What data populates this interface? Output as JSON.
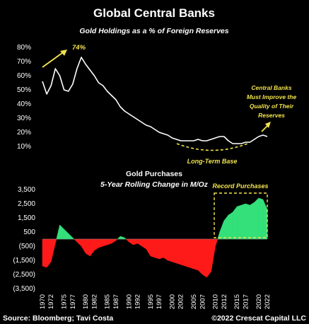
{
  "colors": {
    "background": "#000000",
    "line": "#ffffff",
    "annotation": "#f2e34c",
    "positive": "#33e07a",
    "negative": "#ff1a1a"
  },
  "footer": {
    "source": "Source: Bloomberg; Tavi Costa",
    "copyright": "©2022 Crescat Capital LLC"
  },
  "chart_data": [
    {
      "type": "line",
      "title": "Global Central Banks",
      "subtitle": "Gold Holdings as a % of Foreign Reserves",
      "ylim": [
        0.1,
        0.8
      ],
      "y_ticks": [
        "80%",
        "70%",
        "60%",
        "50%",
        "40%",
        "30%",
        "20%",
        "10%"
      ],
      "x": [
        1970,
        1971,
        1972,
        1973,
        1974,
        1975,
        1976,
        1977,
        1978,
        1979,
        1980,
        1981,
        1982,
        1983,
        1984,
        1985,
        1986,
        1987,
        1988,
        1989,
        1990,
        1991,
        1992,
        1993,
        1994,
        1995,
        1996,
        1997,
        1998,
        1999,
        2000,
        2001,
        2002,
        2003,
        2004,
        2005,
        2006,
        2007,
        2008,
        2009,
        2010,
        2011,
        2012,
        2013,
        2014,
        2015,
        2016,
        2017,
        2018,
        2019,
        2020,
        2021,
        2022
      ],
      "series": [
        {
          "values": [
            0.56,
            0.47,
            0.53,
            0.65,
            0.6,
            0.5,
            0.49,
            0.54,
            0.65,
            0.73,
            0.68,
            0.64,
            0.6,
            0.55,
            0.53,
            0.49,
            0.46,
            0.43,
            0.38,
            0.35,
            0.33,
            0.31,
            0.29,
            0.27,
            0.25,
            0.24,
            0.22,
            0.2,
            0.19,
            0.18,
            0.16,
            0.15,
            0.14,
            0.14,
            0.14,
            0.14,
            0.15,
            0.14,
            0.14,
            0.15,
            0.16,
            0.17,
            0.17,
            0.14,
            0.12,
            0.12,
            0.12,
            0.13,
            0.13,
            0.15,
            0.17,
            0.18,
            0.17
          ]
        }
      ],
      "annotations": [
        {
          "text": "74%"
        },
        {
          "text": "Long-Term Base"
        },
        {
          "lines": [
            "Central Banks",
            "Must Improve the",
            "Quality of Their",
            "Reserves"
          ]
        }
      ]
    },
    {
      "type": "area",
      "title": "Gold Purchases",
      "subtitle": "5-Year Rolling Change in M/Oz",
      "ylim": [
        -3500,
        3500
      ],
      "y_ticks": [
        "3,500",
        "2,500",
        "1,500",
        "500",
        "(500)",
        "(1,500)",
        "(2,500)",
        "(3,500)"
      ],
      "x_tick_labels": [
        "1970",
        "1972",
        "1975",
        "1977",
        "1980",
        "1982",
        "1985",
        "1987",
        "1990",
        "1992",
        "1995",
        "1997",
        "2000",
        "2002",
        "2005",
        "2007",
        "2010",
        "2012",
        "2015",
        "2017",
        "2020",
        "2022"
      ],
      "x": [
        1970,
        1971,
        1972,
        1973,
        1974,
        1975,
        1976,
        1977,
        1978,
        1979,
        1980,
        1981,
        1982,
        1983,
        1984,
        1985,
        1986,
        1987,
        1988,
        1989,
        1990,
        1991,
        1992,
        1993,
        1994,
        1995,
        1996,
        1997,
        1998,
        1999,
        2000,
        2001,
        2002,
        2003,
        2004,
        2005,
        2006,
        2007,
        2008,
        2009,
        2010,
        2011,
        2012,
        2013,
        2014,
        2015,
        2016,
        2017,
        2018,
        2019,
        2020,
        2021,
        2022
      ],
      "series": [
        {
          "values": [
            -1900,
            -2000,
            -1600,
            -300,
            1000,
            700,
            400,
            100,
            -200,
            -500,
            -1000,
            -1200,
            -800,
            -600,
            -500,
            -400,
            -300,
            -100,
            200,
            100,
            -200,
            -400,
            -300,
            -500,
            -700,
            -1200,
            -1300,
            -1400,
            -1300,
            -1500,
            -1600,
            -1700,
            -1800,
            -1900,
            -2000,
            -2100,
            -2200,
            -2500,
            -2700,
            -2300,
            -500,
            500,
            1300,
            1700,
            1900,
            2300,
            2400,
            2500,
            2400,
            2600,
            2900,
            2800,
            2100
          ]
        }
      ],
      "annotations": [
        {
          "text": "Record Purchases"
        }
      ]
    }
  ]
}
